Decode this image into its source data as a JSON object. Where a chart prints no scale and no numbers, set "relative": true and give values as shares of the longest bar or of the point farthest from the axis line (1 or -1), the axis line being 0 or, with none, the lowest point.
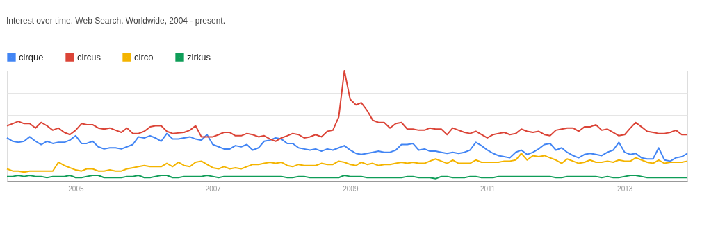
{
  "chart_data": {
    "type": "line",
    "title": "Interest over time. Web Search. Worldwide, 2004 - present.",
    "relative": true,
    "grid": "y",
    "legend": "top left",
    "marker": "none",
    "line_style": "solid",
    "xlim": [
      "2004-01",
      "2013-12"
    ],
    "xticks": [
      "2005",
      "2007",
      "2009",
      "2011",
      "2013"
    ],
    "x": [
      "2004-01",
      "2004-02",
      "2004-03",
      "2004-04",
      "2004-05",
      "2004-06",
      "2004-07",
      "2004-08",
      "2004-09",
      "2004-10",
      "2004-11",
      "2004-12",
      "2005-01",
      "2005-02",
      "2005-03",
      "2005-04",
      "2005-05",
      "2005-06",
      "2005-07",
      "2005-08",
      "2005-09",
      "2005-10",
      "2005-11",
      "2005-12",
      "2006-01",
      "2006-02",
      "2006-03",
      "2006-04",
      "2006-05",
      "2006-06",
      "2006-07",
      "2006-08",
      "2006-09",
      "2006-10",
      "2006-11",
      "2006-12",
      "2007-01",
      "2007-02",
      "2007-03",
      "2007-04",
      "2007-05",
      "2007-06",
      "2007-07",
      "2007-08",
      "2007-09",
      "2007-10",
      "2007-11",
      "2007-12",
      "2008-01",
      "2008-02",
      "2008-03",
      "2008-04",
      "2008-05",
      "2008-06",
      "2008-07",
      "2008-08",
      "2008-09",
      "2008-10",
      "2008-11",
      "2008-12",
      "2009-01",
      "2009-02",
      "2009-03",
      "2009-04",
      "2009-05",
      "2009-06",
      "2009-07",
      "2009-08",
      "2009-09",
      "2009-10",
      "2009-11",
      "2009-12",
      "2010-01",
      "2010-02",
      "2010-03",
      "2010-04",
      "2010-05",
      "2010-06",
      "2010-07",
      "2010-08",
      "2010-09",
      "2010-10",
      "2010-11",
      "2010-12",
      "2011-01",
      "2011-02",
      "2011-03",
      "2011-04",
      "2011-05",
      "2011-06",
      "2011-07",
      "2011-08",
      "2011-09",
      "2011-10",
      "2011-11",
      "2011-12",
      "2012-01",
      "2012-02",
      "2012-03",
      "2012-04",
      "2012-05",
      "2012-06",
      "2012-07",
      "2012-08",
      "2012-09",
      "2012-10",
      "2012-11",
      "2012-12",
      "2013-01",
      "2013-02",
      "2013-03",
      "2013-04",
      "2013-05",
      "2013-06",
      "2013-07",
      "2013-08",
      "2013-09",
      "2013-10",
      "2013-11",
      "2013-12"
    ],
    "series": [
      {
        "name": "cirque",
        "color": "#4285f4",
        "values": [
          0.39,
          0.36,
          0.35,
          0.36,
          0.4,
          0.36,
          0.33,
          0.36,
          0.34,
          0.35,
          0.35,
          0.37,
          0.41,
          0.34,
          0.34,
          0.36,
          0.31,
          0.29,
          0.3,
          0.3,
          0.29,
          0.31,
          0.33,
          0.4,
          0.39,
          0.41,
          0.39,
          0.36,
          0.43,
          0.38,
          0.38,
          0.39,
          0.4,
          0.38,
          0.37,
          0.42,
          0.33,
          0.31,
          0.29,
          0.29,
          0.32,
          0.31,
          0.33,
          0.28,
          0.3,
          0.36,
          0.37,
          0.39,
          0.38,
          0.34,
          0.34,
          0.3,
          0.29,
          0.28,
          0.29,
          0.27,
          0.29,
          0.28,
          0.3,
          0.32,
          0.28,
          0.25,
          0.24,
          0.25,
          0.26,
          0.27,
          0.26,
          0.26,
          0.28,
          0.33,
          0.33,
          0.34,
          0.28,
          0.29,
          0.27,
          0.27,
          0.26,
          0.25,
          0.26,
          0.25,
          0.26,
          0.28,
          0.35,
          0.32,
          0.28,
          0.25,
          0.23,
          0.22,
          0.21,
          0.26,
          0.28,
          0.24,
          0.26,
          0.29,
          0.33,
          0.34,
          0.28,
          0.3,
          0.26,
          0.23,
          0.21,
          0.24,
          0.25,
          0.24,
          0.23,
          0.26,
          0.28,
          0.35,
          0.26,
          0.24,
          0.25,
          0.21,
          0.2,
          0.2,
          0.3,
          0.19,
          0.18,
          0.21,
          0.22,
          0.25
        ]
      },
      {
        "name": "circus",
        "color": "#db4437",
        "values": [
          0.5,
          0.52,
          0.54,
          0.52,
          0.52,
          0.48,
          0.53,
          0.5,
          0.46,
          0.48,
          0.44,
          0.42,
          0.46,
          0.52,
          0.51,
          0.51,
          0.48,
          0.47,
          0.48,
          0.46,
          0.44,
          0.48,
          0.43,
          0.43,
          0.45,
          0.49,
          0.5,
          0.5,
          0.45,
          0.43,
          0.435,
          0.44,
          0.46,
          0.5,
          0.4,
          0.4,
          0.4,
          0.42,
          0.44,
          0.44,
          0.41,
          0.41,
          0.43,
          0.42,
          0.4,
          0.41,
          0.38,
          0.36,
          0.39,
          0.41,
          0.43,
          0.42,
          0.39,
          0.4,
          0.42,
          0.4,
          0.45,
          0.46,
          0.58,
          1.0,
          0.74,
          0.69,
          0.71,
          0.64,
          0.55,
          0.53,
          0.53,
          0.48,
          0.52,
          0.53,
          0.47,
          0.47,
          0.46,
          0.46,
          0.48,
          0.47,
          0.47,
          0.42,
          0.48,
          0.46,
          0.44,
          0.43,
          0.45,
          0.42,
          0.39,
          0.42,
          0.43,
          0.44,
          0.42,
          0.43,
          0.47,
          0.45,
          0.44,
          0.45,
          0.42,
          0.41,
          0.46,
          0.47,
          0.48,
          0.48,
          0.45,
          0.49,
          0.49,
          0.51,
          0.46,
          0.47,
          0.44,
          0.41,
          0.42,
          0.48,
          0.53,
          0.49,
          0.45,
          0.44,
          0.43,
          0.43,
          0.44,
          0.46,
          0.42,
          0.42
        ]
      },
      {
        "name": "circo",
        "color": "#f4b400",
        "values": [
          0.11,
          0.09,
          0.09,
          0.08,
          0.09,
          0.09,
          0.09,
          0.09,
          0.09,
          0.17,
          0.14,
          0.12,
          0.1,
          0.09,
          0.11,
          0.11,
          0.09,
          0.09,
          0.1,
          0.09,
          0.09,
          0.11,
          0.12,
          0.13,
          0.14,
          0.13,
          0.13,
          0.13,
          0.16,
          0.13,
          0.17,
          0.14,
          0.13,
          0.17,
          0.18,
          0.15,
          0.12,
          0.11,
          0.13,
          0.11,
          0.12,
          0.11,
          0.13,
          0.15,
          0.15,
          0.16,
          0.17,
          0.16,
          0.17,
          0.14,
          0.13,
          0.15,
          0.14,
          0.14,
          0.14,
          0.16,
          0.15,
          0.15,
          0.18,
          0.17,
          0.15,
          0.14,
          0.17,
          0.15,
          0.16,
          0.14,
          0.15,
          0.15,
          0.16,
          0.17,
          0.16,
          0.17,
          0.16,
          0.16,
          0.18,
          0.2,
          0.18,
          0.16,
          0.19,
          0.16,
          0.16,
          0.16,
          0.19,
          0.17,
          0.17,
          0.17,
          0.17,
          0.18,
          0.18,
          0.19,
          0.25,
          0.19,
          0.23,
          0.22,
          0.23,
          0.21,
          0.19,
          0.16,
          0.2,
          0.18,
          0.16,
          0.17,
          0.19,
          0.17,
          0.17,
          0.18,
          0.17,
          0.19,
          0.18,
          0.18,
          0.21,
          0.19,
          0.17,
          0.16,
          0.19,
          0.16,
          0.17,
          0.17,
          0.17,
          0.18
        ]
      },
      {
        "name": "zirkus",
        "color": "#0f9d58",
        "values": [
          0.04,
          0.04,
          0.05,
          0.04,
          0.05,
          0.04,
          0.04,
          0.03,
          0.04,
          0.04,
          0.04,
          0.05,
          0.03,
          0.03,
          0.04,
          0.05,
          0.05,
          0.03,
          0.03,
          0.03,
          0.03,
          0.04,
          0.04,
          0.05,
          0.03,
          0.03,
          0.04,
          0.05,
          0.05,
          0.03,
          0.03,
          0.04,
          0.04,
          0.04,
          0.04,
          0.05,
          0.04,
          0.03,
          0.04,
          0.04,
          0.04,
          0.04,
          0.04,
          0.04,
          0.04,
          0.04,
          0.04,
          0.04,
          0.04,
          0.03,
          0.03,
          0.04,
          0.04,
          0.03,
          0.03,
          0.03,
          0.03,
          0.03,
          0.03,
          0.05,
          0.04,
          0.04,
          0.04,
          0.03,
          0.03,
          0.03,
          0.03,
          0.03,
          0.03,
          0.03,
          0.04,
          0.04,
          0.03,
          0.03,
          0.03,
          0.02,
          0.04,
          0.04,
          0.03,
          0.03,
          0.03,
          0.04,
          0.04,
          0.03,
          0.03,
          0.03,
          0.04,
          0.04,
          0.04,
          0.04,
          0.04,
          0.04,
          0.04,
          0.04,
          0.04,
          0.04,
          0.03,
          0.03,
          0.04,
          0.04,
          0.04,
          0.04,
          0.04,
          0.04,
          0.03,
          0.04,
          0.03,
          0.03,
          0.04,
          0.05,
          0.05,
          0.04,
          0.03,
          0.03,
          0.03,
          0.03,
          0.03,
          0.03,
          0.03,
          0.03
        ]
      }
    ]
  }
}
